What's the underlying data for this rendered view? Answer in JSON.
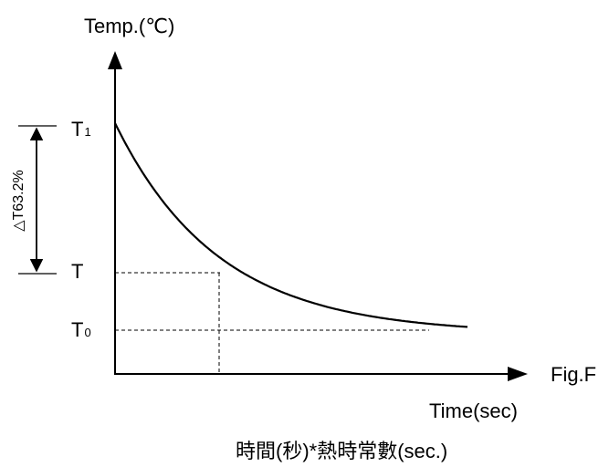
{
  "diagram": {
    "y_axis_label": "Temp.(℃)",
    "x_axis_label": "Time(sec)",
    "caption": "時間(秒)*熱時常數(sec.)",
    "figure_label": "Fig.F",
    "delta_label": "△T63.2%",
    "levels": {
      "t1_main": "T",
      "t1_sub": "1",
      "t_main": "T",
      "t0_main": "T",
      "t0_sub": "0"
    },
    "curve_type": "exponential decay",
    "curve_color": "#000000",
    "guide_style": "dashed"
  }
}
